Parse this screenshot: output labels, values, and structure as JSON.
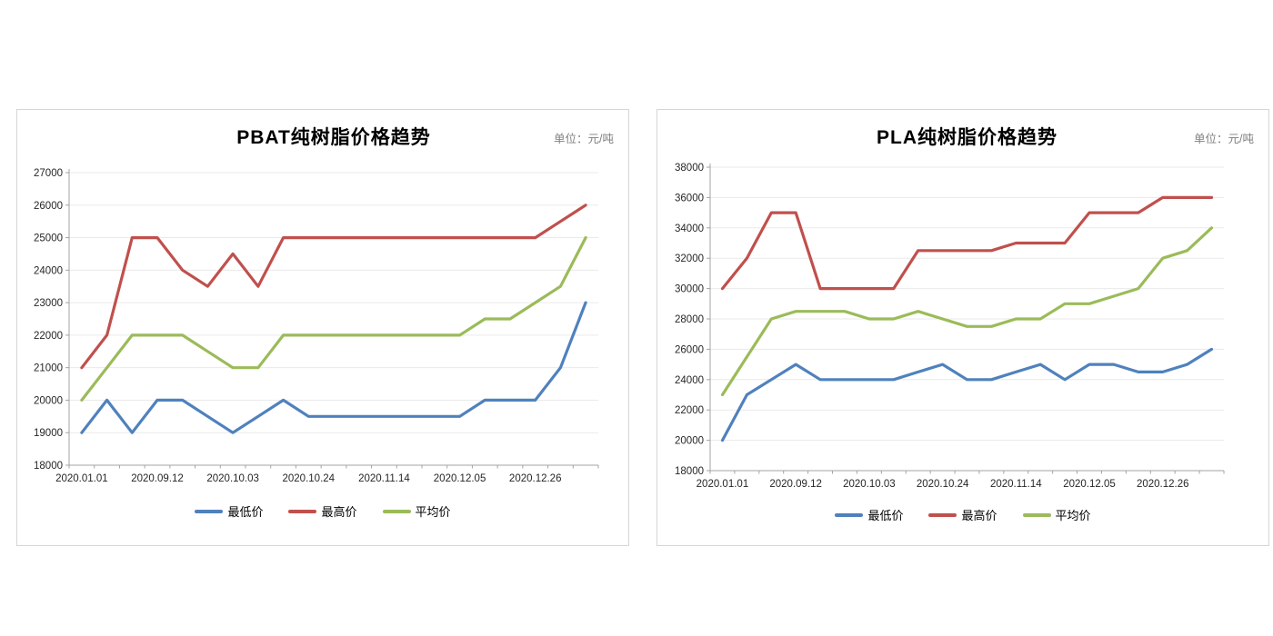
{
  "page": {
    "background": "#ffffff"
  },
  "colors": {
    "min_line": "#4F81BD",
    "max_line": "#C0504D",
    "avg_line": "#9BBB59",
    "axis": "#a3a3a3",
    "grid": "#eaeaea",
    "tick_label": "#262626",
    "unit_text": "#7f7f7f",
    "panel_border": "#d6d6d6",
    "title_text": "#000000"
  },
  "chart_data": [
    {
      "type": "line",
      "title": "PBAT纯树脂价格趋势",
      "unit_label": "单位：元/吨",
      "legend_position": "bottom",
      "grid": true,
      "ylim": [
        18000,
        27000
      ],
      "ytick_step": 1000,
      "y_ticks": [
        27000,
        26000,
        25000,
        24000,
        23000,
        22000,
        21000,
        20000,
        19000,
        18000
      ],
      "categories": [
        "2020.01.01",
        "",
        "",
        "2020.09.12",
        "",
        "",
        "2020.10.03",
        "",
        "",
        "2020.10.24",
        "",
        "",
        "2020.11.14",
        "",
        "",
        "2020.12.05",
        "",
        "",
        "2020.12.26",
        "",
        ""
      ],
      "series": [
        {
          "name": "最低价",
          "color": "#4F81BD",
          "values": [
            19000,
            20000,
            19000,
            20000,
            20000,
            19500,
            19000,
            19500,
            20000,
            19500,
            19500,
            19500,
            19500,
            19500,
            19500,
            19500,
            20000,
            20000,
            20000,
            21000,
            23000
          ]
        },
        {
          "name": "最高价",
          "color": "#C0504D",
          "values": [
            21000,
            22000,
            25000,
            25000,
            24000,
            23500,
            24500,
            23500,
            25000,
            25000,
            25000,
            25000,
            25000,
            25000,
            25000,
            25000,
            25000,
            25000,
            25000,
            25500,
            26000
          ]
        },
        {
          "name": "平均价",
          "color": "#9BBB59",
          "values": [
            20000,
            21000,
            22000,
            22000,
            22000,
            21500,
            21000,
            21000,
            22000,
            22000,
            22000,
            22000,
            22000,
            22000,
            22000,
            22000,
            22500,
            22500,
            23000,
            23500,
            25000
          ]
        }
      ]
    },
    {
      "type": "line",
      "title": "PLA纯树脂价格趋势",
      "unit_label": "单位：元/吨",
      "legend_position": "bottom",
      "grid": true,
      "ylim": [
        18000,
        38000
      ],
      "ytick_step": 2000,
      "y_ticks": [
        38000,
        36000,
        34000,
        32000,
        30000,
        28000,
        26000,
        24000,
        22000,
        20000,
        18000
      ],
      "categories": [
        "2020.01.01",
        "",
        "",
        "2020.09.12",
        "",
        "",
        "2020.10.03",
        "",
        "",
        "2020.10.24",
        "",
        "",
        "2020.11.14",
        "",
        "",
        "2020.12.05",
        "",
        "",
        "2020.12.26",
        "",
        ""
      ],
      "series": [
        {
          "name": "最低价",
          "color": "#4F81BD",
          "values": [
            20000,
            23000,
            24000,
            25000,
            24000,
            24000,
            24000,
            24000,
            24500,
            25000,
            24000,
            24000,
            24500,
            25000,
            24000,
            25000,
            25000,
            24500,
            24500,
            25000,
            26000
          ]
        },
        {
          "name": "最高价",
          "color": "#C0504D",
          "values": [
            30000,
            32000,
            35000,
            35000,
            30000,
            30000,
            30000,
            30000,
            32500,
            32500,
            32500,
            32500,
            33000,
            33000,
            33000,
            35000,
            35000,
            35000,
            36000,
            36000,
            36000
          ]
        },
        {
          "name": "平均价",
          "color": "#9BBB59",
          "values": [
            23000,
            25500,
            28000,
            28500,
            28500,
            28500,
            28000,
            28000,
            28500,
            28000,
            27500,
            27500,
            28000,
            28000,
            29000,
            29000,
            29500,
            30000,
            32000,
            32500,
            34000
          ]
        }
      ]
    }
  ]
}
